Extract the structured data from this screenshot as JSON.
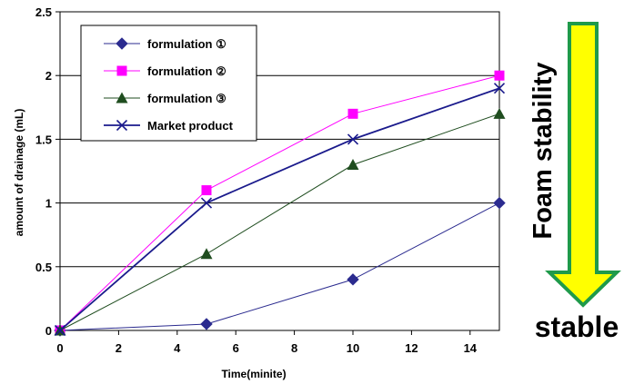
{
  "chart_data": {
    "type": "line",
    "xlabel": "Time(minite)",
    "ylabel": "amount of drainage (mL)",
    "xlim": [
      0,
      15
    ],
    "ylim": [
      0,
      2.5
    ],
    "xticks": [
      0,
      2,
      4,
      6,
      8,
      10,
      12,
      14
    ],
    "yticks": [
      0,
      0.5,
      1,
      1.5,
      2,
      2.5
    ],
    "ytick_labels": [
      "0",
      "0.5",
      "1",
      "1.5",
      "2",
      "2.5"
    ],
    "grid": "horizontal",
    "legend_position": "top-left",
    "x": [
      0,
      5,
      10,
      15
    ],
    "series": [
      {
        "name": "formulation ①",
        "values": [
          0,
          0.05,
          0.4,
          1.0
        ],
        "color": "#2b2b8f",
        "marker": "diamond"
      },
      {
        "name": "formulation ②",
        "values": [
          0,
          1.1,
          1.7,
          2.0
        ],
        "color": "#ff00ff",
        "marker": "square"
      },
      {
        "name": "formulation ③",
        "values": [
          0,
          0.6,
          1.3,
          1.7
        ],
        "color": "#1f4d1f",
        "marker": "triangle"
      },
      {
        "name": "Market product",
        "values": [
          0,
          1.0,
          1.5,
          1.9
        ],
        "color": "#1a1a8c",
        "marker": "x"
      }
    ]
  },
  "annotation": {
    "arrow_label": "Foam stability",
    "bottom_label": "stable",
    "arrow_fill": "#ffff00",
    "arrow_stroke": "#1f9a4a"
  }
}
